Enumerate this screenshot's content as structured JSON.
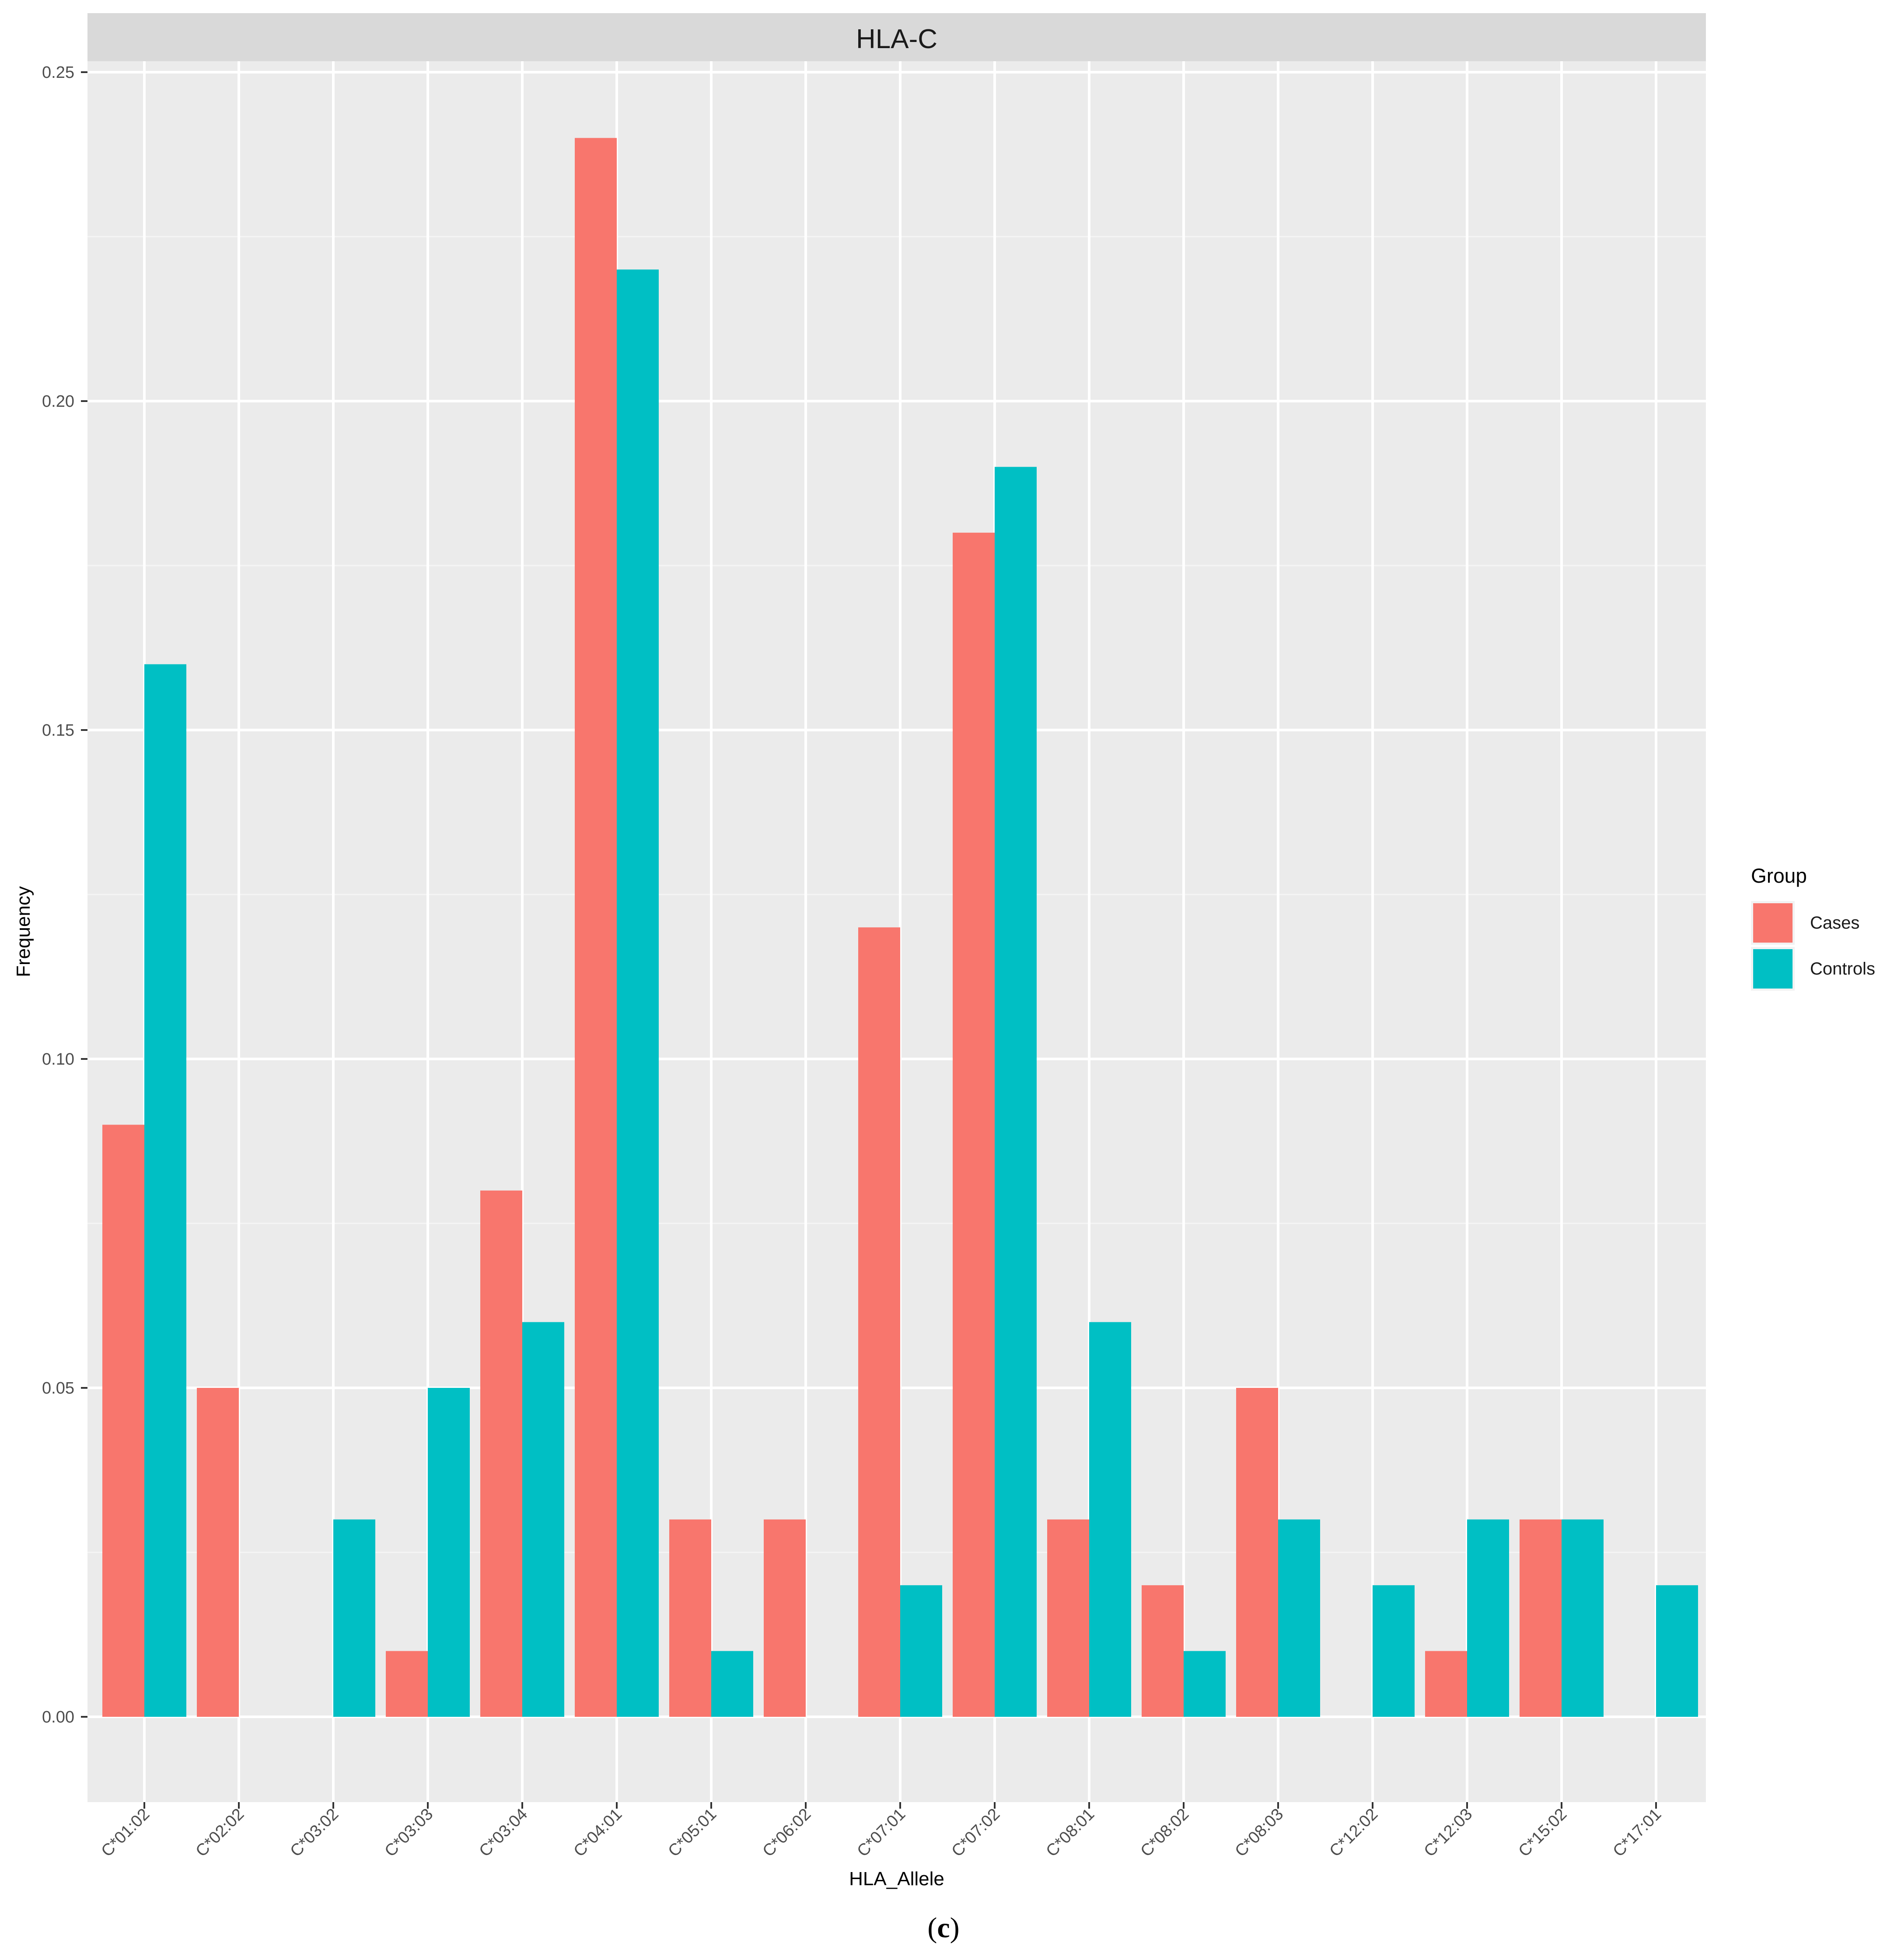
{
  "caption": {
    "open": "(",
    "letter": "c",
    "close": ")"
  },
  "chart_data": {
    "type": "bar",
    "facet_title": "HLA-C",
    "xlabel": "HLA_Allele",
    "ylabel": "Frequency",
    "ylim": [
      0,
      0.25
    ],
    "yticks": [
      0.0,
      0.05,
      0.1,
      0.15,
      0.2,
      0.25
    ],
    "ytick_labels": [
      "0.00",
      "0.05",
      "0.10",
      "0.15",
      "0.20",
      "0.25"
    ],
    "grid": true,
    "legend": {
      "title": "Group",
      "position": "right"
    },
    "categories": [
      "C*01:02",
      "C*02:02",
      "C*03:02",
      "C*03:03",
      "C*03:04",
      "C*04:01",
      "C*05:01",
      "C*06:02",
      "C*07:01",
      "C*07:02",
      "C*08:01",
      "C*08:02",
      "C*08:03",
      "C*12:02",
      "C*12:03",
      "C*15:02",
      "C*17:01"
    ],
    "series": [
      {
        "name": "Cases",
        "color": "#F8766D",
        "values": [
          0.09,
          0.05,
          0.0,
          0.01,
          0.08,
          0.24,
          0.03,
          0.03,
          0.12,
          0.18,
          0.03,
          0.02,
          0.05,
          0.0,
          0.01,
          0.03,
          0.0
        ]
      },
      {
        "name": "Controls",
        "color": "#00BFC4",
        "values": [
          0.16,
          0.0,
          0.03,
          0.05,
          0.06,
          0.22,
          0.01,
          0.0,
          0.02,
          0.19,
          0.06,
          0.01,
          0.03,
          0.02,
          0.03,
          0.03,
          0.02
        ]
      }
    ]
  }
}
